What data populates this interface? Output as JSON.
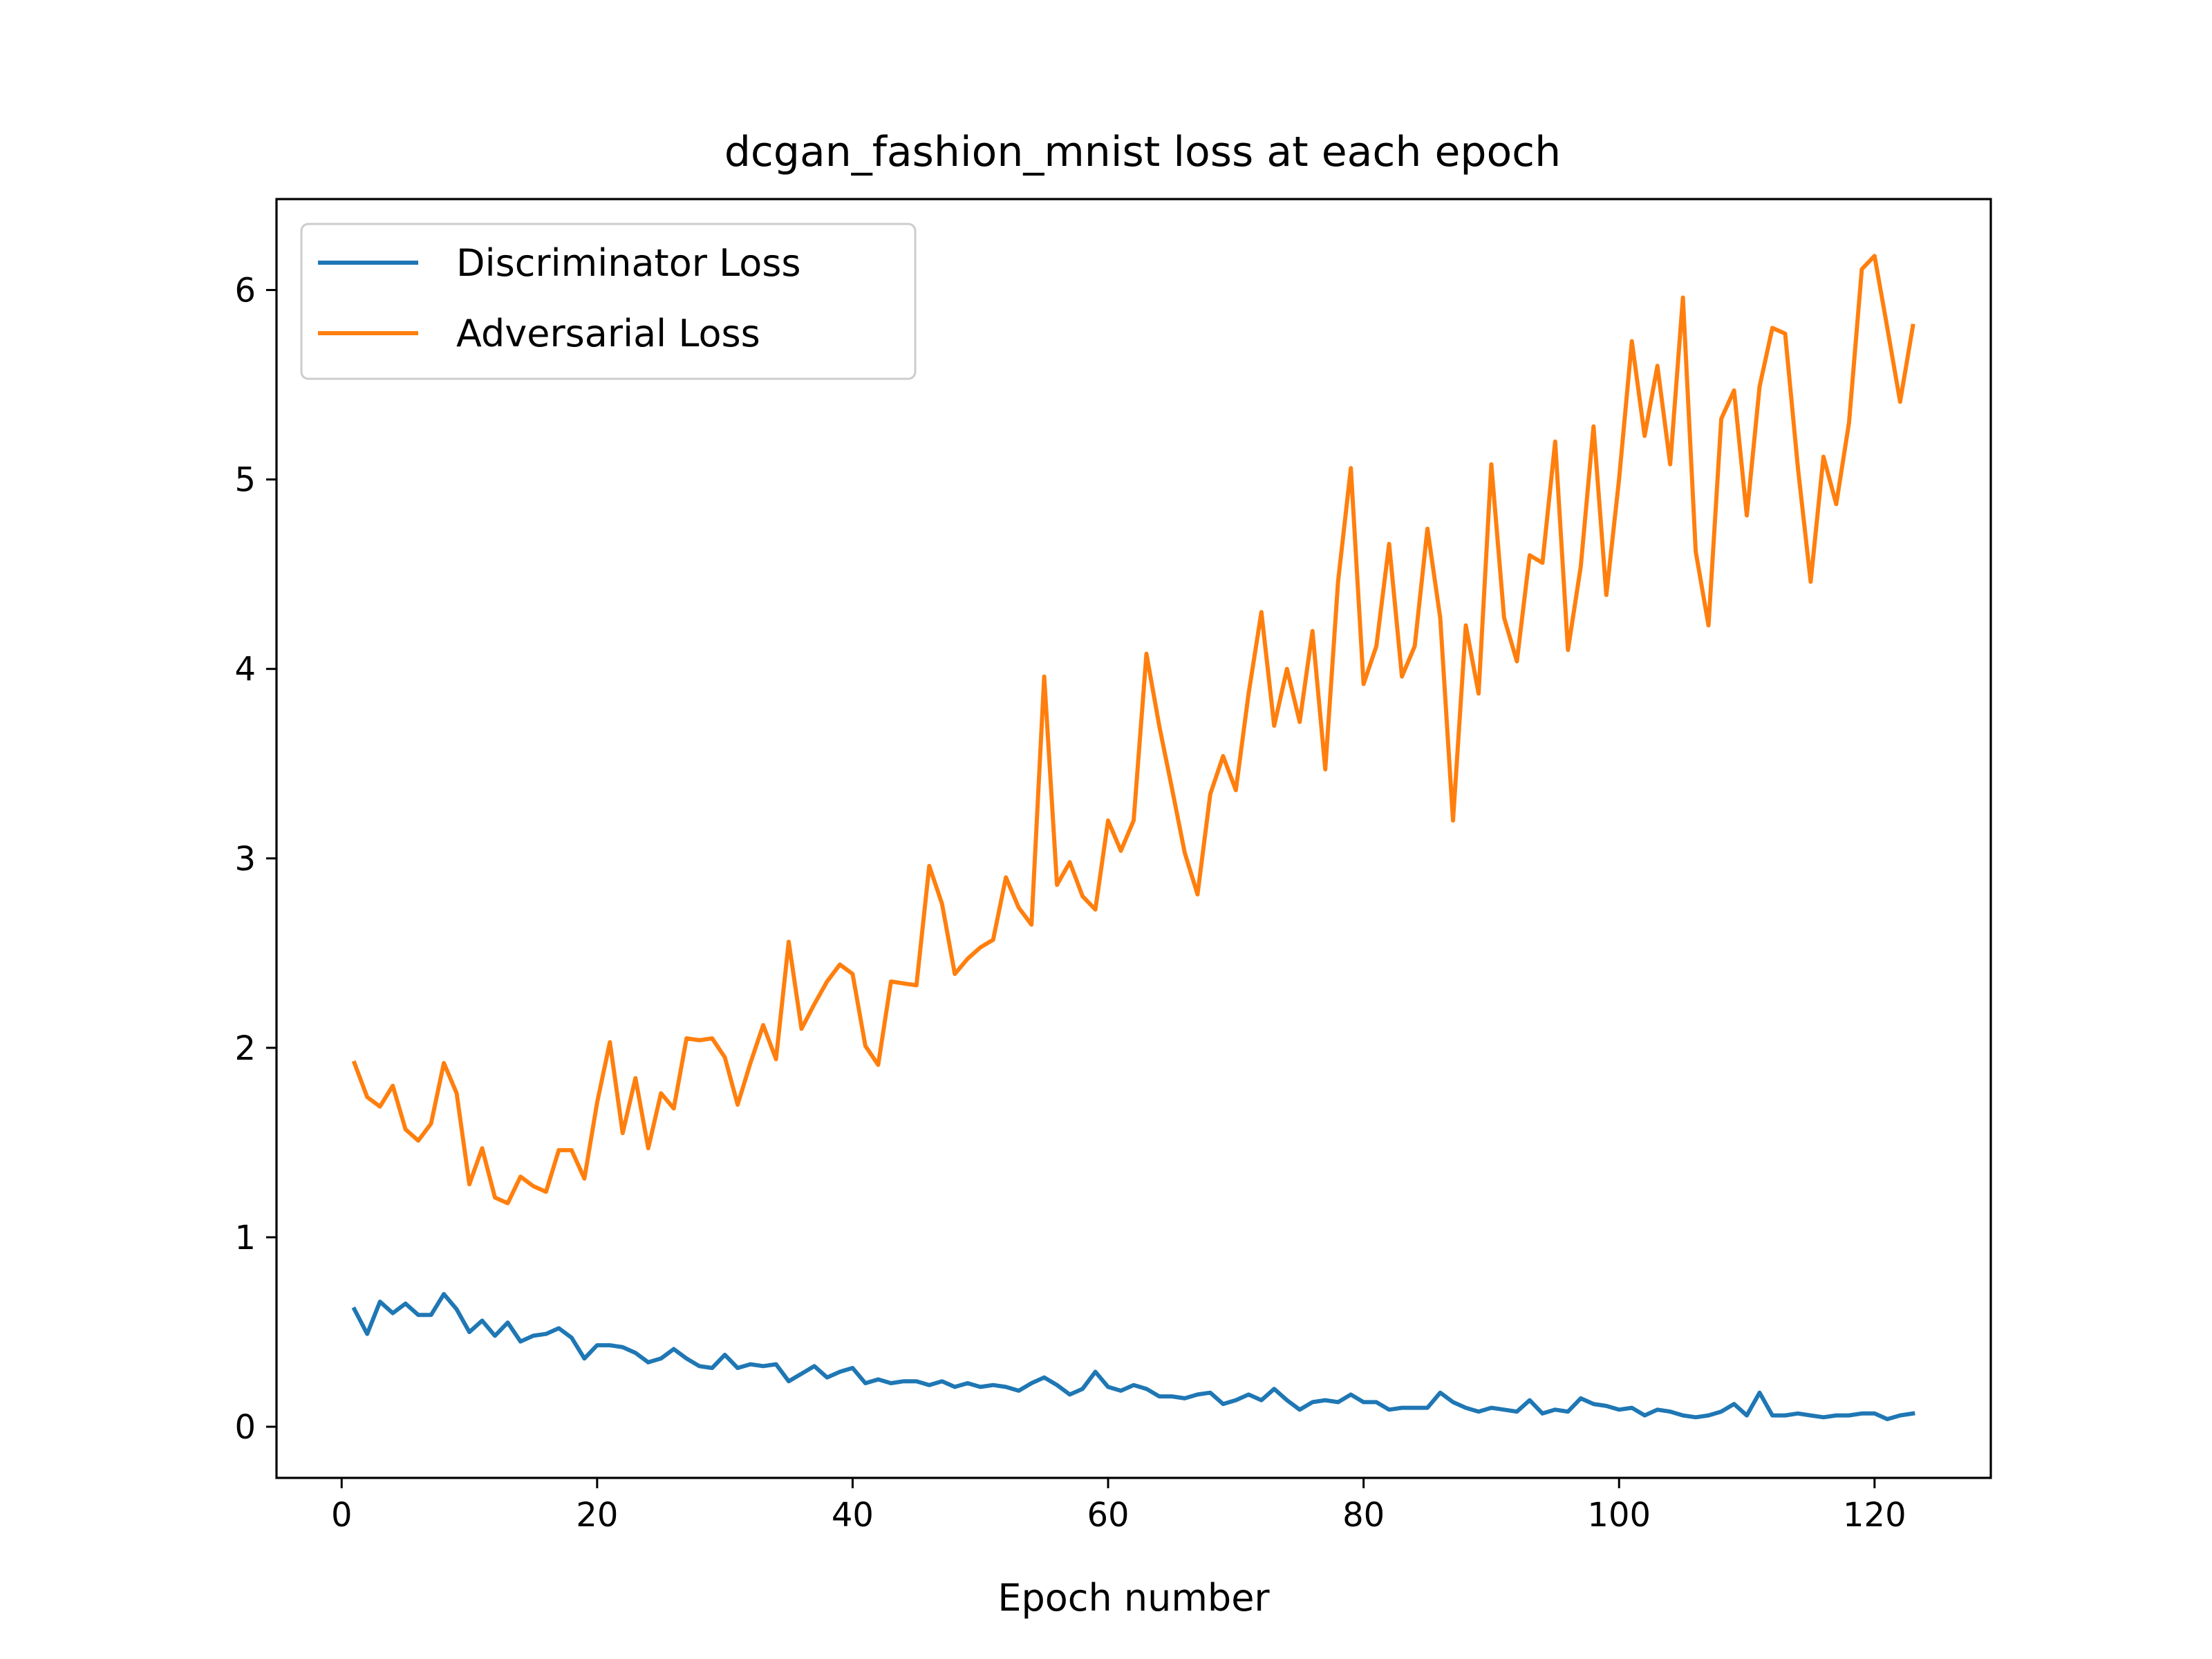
{
  "chart_data": {
    "type": "line",
    "title": "dcgan_fashion_mnist loss at each epoch",
    "xlabel": "Epoch number",
    "ylabel": "",
    "xlim": [
      -5.1,
      129.1
    ],
    "ylim": [
      -0.27,
      6.48
    ],
    "xticks": [
      0,
      20,
      40,
      60,
      80,
      100,
      120
    ],
    "yticks": [
      0,
      1,
      2,
      3,
      4,
      5,
      6
    ],
    "grid": false,
    "legend": "top-left",
    "x": [
      1,
      2,
      3,
      4,
      5,
      6,
      7,
      8,
      9,
      10,
      11,
      12,
      13,
      14,
      15,
      16,
      17,
      18,
      19,
      20,
      21,
      22,
      23,
      24,
      25,
      26,
      27,
      28,
      29,
      30,
      31,
      32,
      33,
      34,
      35,
      36,
      37,
      38,
      39,
      40,
      41,
      42,
      43,
      44,
      45,
      46,
      47,
      48,
      49,
      50,
      51,
      52,
      53,
      54,
      55,
      56,
      57,
      58,
      59,
      60,
      61,
      62,
      63,
      64,
      65,
      66,
      67,
      68,
      69,
      70,
      71,
      72,
      73,
      74,
      75,
      76,
      77,
      78,
      79,
      80,
      81,
      82,
      83,
      84,
      85,
      86,
      87,
      88,
      89,
      90,
      91,
      92,
      93,
      94,
      95,
      96,
      97,
      98,
      99,
      100,
      101,
      102,
      103,
      104,
      105,
      106,
      107,
      108,
      109,
      110,
      111,
      112,
      113,
      114,
      115,
      116,
      117,
      118,
      119,
      120,
      121,
      122,
      123
    ],
    "series": [
      {
        "name": "Discriminator Loss",
        "color": "#1f77b4",
        "values": [
          0.62,
          0.49,
          0.66,
          0.6,
          0.65,
          0.59,
          0.59,
          0.7,
          0.62,
          0.5,
          0.56,
          0.48,
          0.55,
          0.45,
          0.48,
          0.49,
          0.52,
          0.47,
          0.36,
          0.43,
          0.43,
          0.42,
          0.39,
          0.34,
          0.36,
          0.41,
          0.36,
          0.32,
          0.31,
          0.38,
          0.31,
          0.33,
          0.32,
          0.33,
          0.24,
          0.28,
          0.32,
          0.26,
          0.29,
          0.31,
          0.23,
          0.25,
          0.23,
          0.24,
          0.24,
          0.22,
          0.24,
          0.21,
          0.23,
          0.21,
          0.22,
          0.21,
          0.19,
          0.23,
          0.26,
          0.22,
          0.17,
          0.2,
          0.29,
          0.21,
          0.19,
          0.22,
          0.2,
          0.16,
          0.16,
          0.15,
          0.17,
          0.18,
          0.12,
          0.14,
          0.17,
          0.14,
          0.2,
          0.14,
          0.09,
          0.13,
          0.14,
          0.13,
          0.17,
          0.13,
          0.13,
          0.09,
          0.1,
          0.1,
          0.1,
          0.18,
          0.13,
          0.1,
          0.08,
          0.1,
          0.09,
          0.08,
          0.14,
          0.07,
          0.09,
          0.08,
          0.15,
          0.12,
          0.11,
          0.09,
          0.1,
          0.06,
          0.09,
          0.08,
          0.06,
          0.05,
          0.06,
          0.08,
          0.12,
          0.06,
          0.18,
          0.06,
          0.06,
          0.07,
          0.06,
          0.05,
          0.06,
          0.06,
          0.07,
          0.07,
          0.04,
          0.06,
          0.07
        ]
      },
      {
        "name": "Adversarial Loss",
        "color": "#ff7f0e",
        "values": [
          1.92,
          1.74,
          1.69,
          1.8,
          1.57,
          1.51,
          1.6,
          1.92,
          1.76,
          1.28,
          1.47,
          1.21,
          1.18,
          1.32,
          1.27,
          1.24,
          1.46,
          1.46,
          1.31,
          1.71,
          2.03,
          1.55,
          1.84,
          1.47,
          1.76,
          1.68,
          2.05,
          2.04,
          2.05,
          1.95,
          1.7,
          1.92,
          2.12,
          1.94,
          2.56,
          2.1,
          2.23,
          2.35,
          2.44,
          2.39,
          2.01,
          1.91,
          2.35,
          2.34,
          2.33,
          2.96,
          2.76,
          2.39,
          2.47,
          2.53,
          2.57,
          2.9,
          2.74,
          2.65,
          3.96,
          2.86,
          2.98,
          2.8,
          2.73,
          3.2,
          3.04,
          3.2,
          4.08,
          3.7,
          3.37,
          3.03,
          2.81,
          3.34,
          3.54,
          3.36,
          3.87,
          4.3,
          3.7,
          4.0,
          3.72,
          4.2,
          3.47,
          4.46,
          5.06,
          3.92,
          4.12,
          4.66,
          3.96,
          4.12,
          4.74,
          4.27,
          3.2,
          4.23,
          3.87,
          5.08,
          4.27,
          4.04,
          4.6,
          4.56,
          5.2,
          4.1,
          4.54,
          5.28,
          4.39,
          5.0,
          5.73,
          5.23,
          5.6,
          5.08,
          5.96,
          4.62,
          4.23,
          5.32,
          5.47,
          4.81,
          5.49,
          5.8,
          5.77,
          5.06,
          4.46,
          5.12,
          4.87,
          5.3,
          6.11,
          6.18,
          5.8,
          5.41,
          5.81
        ]
      }
    ]
  }
}
